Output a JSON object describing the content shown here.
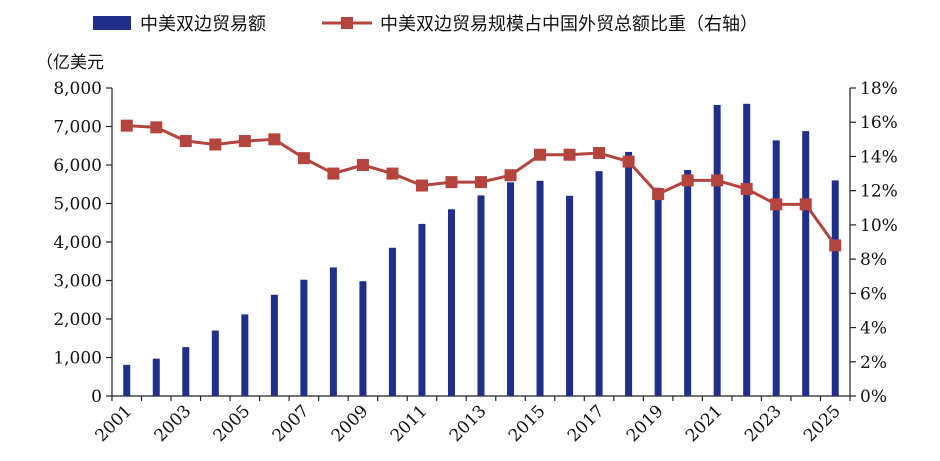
{
  "chart_data": {
    "type": "bar+line",
    "legend": {
      "bar_label": "中美双边贸易额",
      "line_label": "中美双边贸易规模占中国外贸总额比重（右轴）",
      "placement": "top"
    },
    "left_axis_unit": "（亿美元",
    "categories": [
      "2001",
      "2002",
      "2003",
      "2004",
      "2005",
      "2006",
      "2007",
      "2008",
      "2009",
      "2010",
      "2011",
      "2012",
      "2013",
      "2014",
      "2015",
      "2016",
      "2017",
      "2018",
      "2019",
      "2020",
      "2021",
      "2022",
      "2023",
      "2024",
      "2025"
    ],
    "x_tick_labels": [
      "2001",
      "2003",
      "2005",
      "2007",
      "2009",
      "2011",
      "2013",
      "2015",
      "2017",
      "2019",
      "2021",
      "2023",
      "2025"
    ],
    "series": [
      {
        "name": "中美双边贸易额",
        "type": "bar",
        "axis": "left",
        "color": "#1f2f8a",
        "values": [
          810,
          970,
          1270,
          1700,
          2120,
          2630,
          3020,
          3340,
          2980,
          3850,
          4470,
          4850,
          5210,
          5550,
          5590,
          5200,
          5840,
          6340,
          5410,
          5870,
          7560,
          7590,
          6640,
          6880,
          5600
        ]
      },
      {
        "name": "中美双边贸易规模占中国外贸总额比重（右轴）",
        "type": "line",
        "axis": "right",
        "color": "#b5443f",
        "values": [
          15.8,
          15.7,
          14.9,
          14.7,
          14.9,
          15.0,
          13.9,
          13.0,
          13.5,
          13.0,
          12.3,
          12.5,
          12.5,
          12.9,
          14.1,
          14.1,
          14.2,
          13.7,
          11.8,
          12.6,
          12.6,
          12.1,
          11.2,
          11.2,
          8.8
        ]
      }
    ],
    "left_axis": {
      "min": 0,
      "max": 8000,
      "step": 1000,
      "tick_labels": [
        "0",
        "1,000",
        "2,000",
        "3,000",
        "4,000",
        "5,000",
        "6,000",
        "7,000",
        "8,000"
      ]
    },
    "right_axis": {
      "min": 0,
      "max": 18,
      "step": 2,
      "tick_labels": [
        "0%",
        "2%",
        "4%",
        "6%",
        "8%",
        "10%",
        "12%",
        "14%",
        "16%",
        "18%"
      ]
    },
    "grid": false
  }
}
